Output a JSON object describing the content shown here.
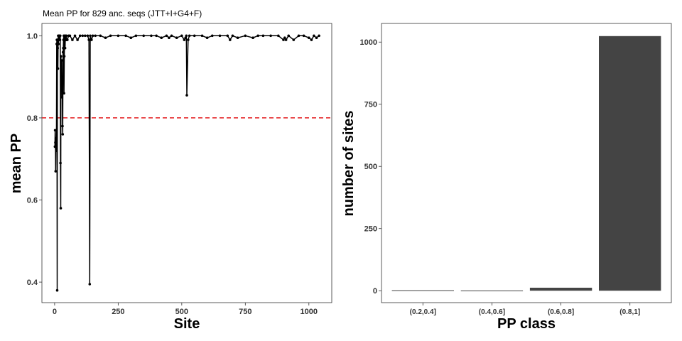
{
  "chart_data": [
    {
      "type": "line",
      "title": "Mean PP for 829 anc. seqs (JTT+I+G4+F)",
      "xlabel": "Site",
      "ylabel": "mean PP",
      "xlim": [
        -50,
        1090
      ],
      "ylim": [
        0.35,
        1.03
      ],
      "xticks": [
        0,
        250,
        500,
        750,
        1000
      ],
      "xtick_labels": [
        "0",
        "250",
        "500",
        "750",
        "1000"
      ],
      "yticks": [
        0.4,
        0.6,
        0.8,
        1.0
      ],
      "ytick_labels": [
        "0.4",
        "0.6",
        "0.8",
        "1.0"
      ],
      "grid": false,
      "reference_line": {
        "y": 0.8,
        "style": "dashed",
        "color": "#e31a1c"
      },
      "series": [
        {
          "color": "#000000",
          "x": [
            1,
            2,
            3,
            4,
            5,
            6,
            7,
            8,
            9,
            10,
            11,
            12,
            13,
            14,
            15,
            16,
            17,
            18,
            19,
            20,
            21,
            22,
            23,
            24,
            25,
            26,
            27,
            28,
            29,
            30,
            31,
            32,
            33,
            34,
            35,
            36,
            37,
            38,
            39,
            40,
            41,
            42,
            43,
            44,
            45,
            46,
            47,
            48,
            50,
            55,
            60,
            70,
            80,
            90,
            100,
            110,
            120,
            130,
            135,
            138,
            140,
            145,
            150,
            160,
            180,
            200,
            220,
            250,
            280,
            300,
            320,
            350,
            380,
            400,
            420,
            440,
            450,
            460,
            480,
            500,
            510,
            515,
            518,
            520,
            525,
            530,
            550,
            580,
            600,
            620,
            650,
            680,
            690,
            700,
            720,
            750,
            780,
            800,
            820,
            850,
            880,
            900,
            905,
            910,
            920,
            940,
            960,
            980,
            1000,
            1010,
            1020,
            1030,
            1040
          ],
          "y": [
            0.73,
            0.77,
            0.74,
            0.67,
            0.75,
            0.73,
            0.72,
            0.98,
            0.99,
            0.38,
            0.99,
            0.97,
            0.92,
            1.0,
            0.98,
            0.99,
            1.0,
            1.0,
            0.99,
            1.0,
            0.99,
            1.0,
            0.69,
            0.58,
            0.95,
            0.88,
            0.87,
            0.94,
            0.85,
            0.9,
            0.78,
            0.76,
            0.96,
            0.97,
            0.99,
            1.0,
            0.86,
            0.95,
            0.99,
            1.0,
            0.97,
            0.99,
            0.99,
            1.0,
            0.99,
            1.0,
            0.99,
            0.99,
            0.99,
            1.0,
            1.0,
            0.99,
            1.0,
            0.99,
            1.0,
            1.0,
            1.0,
            1.0,
            0.99,
            0.395,
            1.0,
            0.99,
            1.0,
            1.0,
            1.0,
            0.995,
            1.0,
            1.0,
            1.0,
            0.995,
            1.0,
            1.0,
            1.0,
            1.0,
            0.995,
            1.0,
            0.995,
            1.0,
            0.995,
            1.0,
            0.99,
            0.995,
            1.0,
            0.855,
            0.99,
            1.0,
            1.0,
            1.0,
            0.995,
            1.0,
            1.0,
            1.0,
            0.99,
            1.0,
            0.995,
            1.0,
            0.995,
            1.0,
            1.0,
            1.0,
            1.0,
            0.99,
            0.995,
            0.99,
            1.0,
            0.99,
            1.0,
            1.0,
            0.995,
            0.99,
            1.0,
            0.995,
            1.0
          ]
        }
      ]
    },
    {
      "type": "bar",
      "title": "",
      "xlabel": "PP class",
      "ylabel": "number of sites",
      "categories": [
        "(0.2,0.4]",
        "(0.4,0.6]",
        "(0.6,0.8]",
        "(0.8,1]"
      ],
      "values": [
        2,
        1,
        12,
        1024
      ],
      "ylim": [
        -48,
        1075
      ],
      "yticks": [
        0,
        250,
        500,
        750,
        1000
      ],
      "ytick_labels": [
        "0",
        "250",
        "500",
        "750",
        "1000"
      ],
      "bar_color": "#444444",
      "grid": false
    }
  ]
}
